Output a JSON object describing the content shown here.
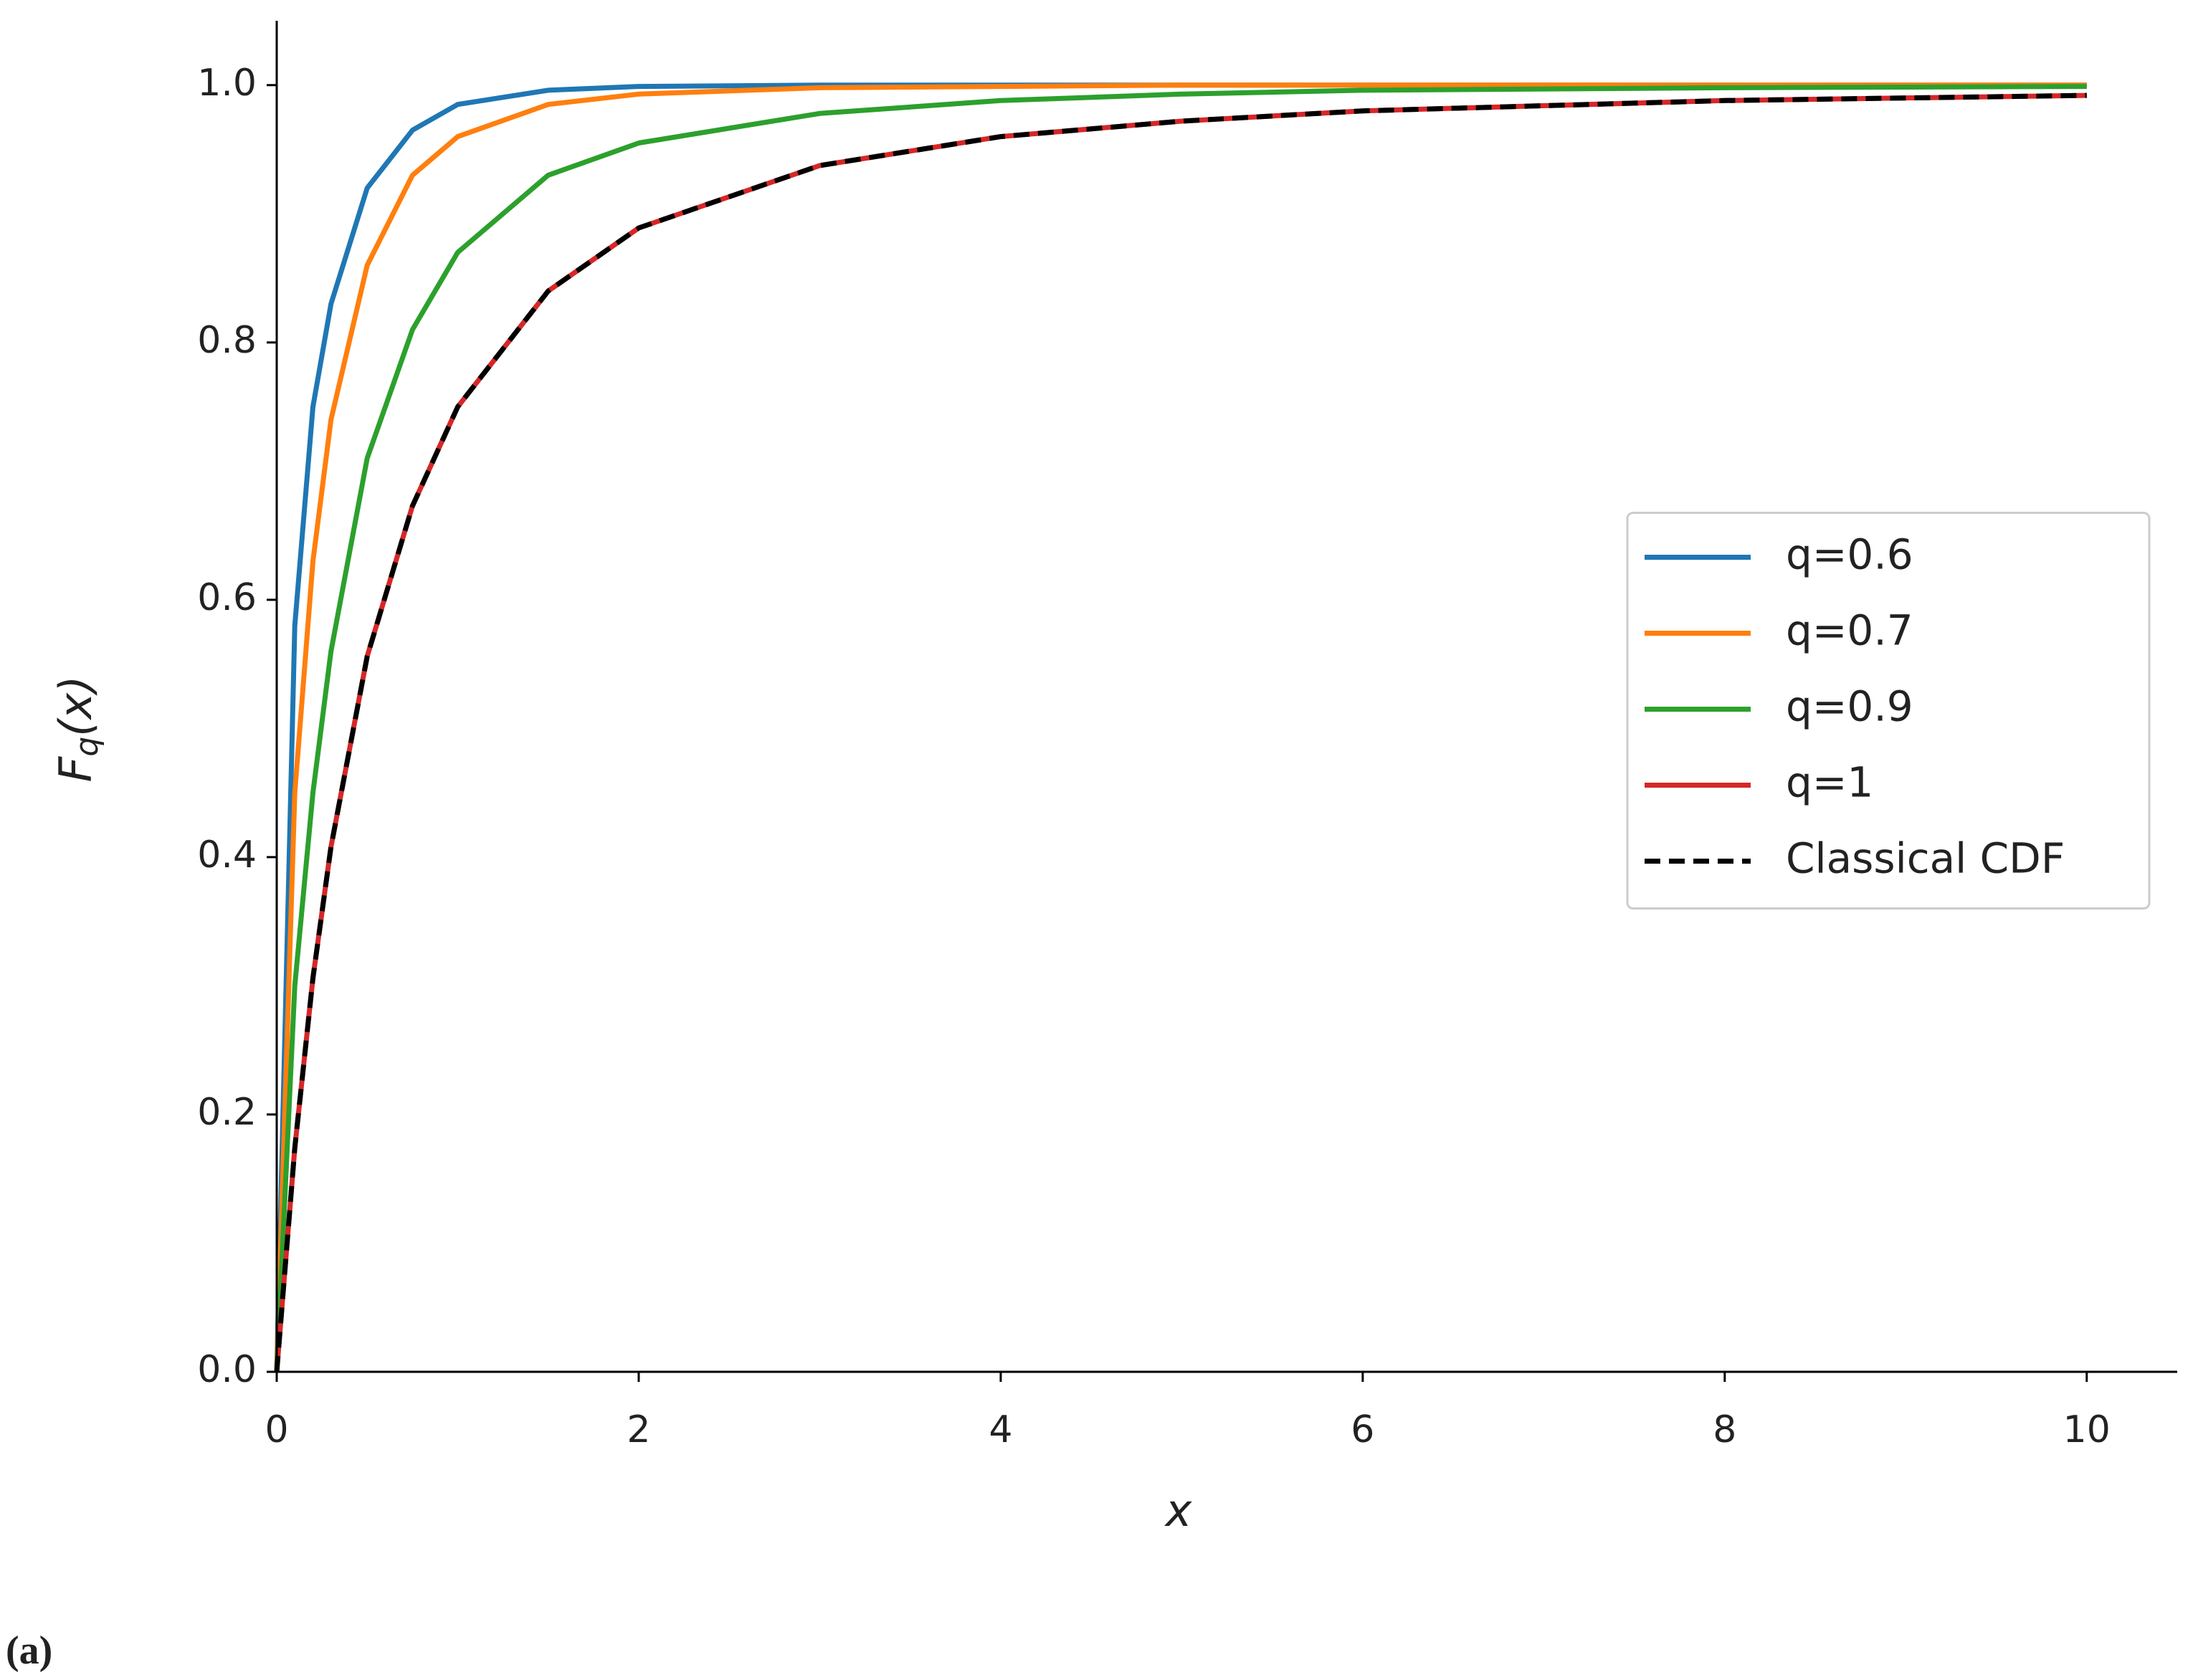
{
  "chart_data": {
    "type": "line",
    "xlabel": "x",
    "ylabel": [
      "F",
      "q",
      "(x)"
    ],
    "panel_label": "(a)",
    "x": [
      0,
      0.1,
      0.2,
      0.3,
      0.5,
      0.75,
      1,
      1.5,
      2,
      3,
      4,
      5,
      6,
      8,
      10
    ],
    "series": [
      {
        "name": "q=0.6",
        "color": "#1f77b4",
        "dash": false,
        "values": [
          0,
          0.58,
          0.75,
          0.83,
          0.92,
          0.965,
          0.985,
          0.996,
          0.999,
          1,
          1,
          1,
          1,
          1,
          1
        ]
      },
      {
        "name": "q=0.7",
        "color": "#ff7f0e",
        "dash": false,
        "values": [
          0,
          0.45,
          0.63,
          0.74,
          0.86,
          0.93,
          0.96,
          0.985,
          0.993,
          0.998,
          0.999,
          1,
          1,
          1,
          1
        ]
      },
      {
        "name": "q=0.9",
        "color": "#2ca02c",
        "dash": false,
        "values": [
          0,
          0.3,
          0.45,
          0.56,
          0.71,
          0.81,
          0.87,
          0.93,
          0.955,
          0.978,
          0.988,
          0.993,
          0.996,
          0.998,
          0.999
        ]
      },
      {
        "name": "q=1",
        "color": "#d62728",
        "dash": false,
        "values": [
          0,
          0.174,
          0.306,
          0.408,
          0.556,
          0.673,
          0.75,
          0.84,
          0.889,
          0.9375,
          0.96,
          0.972,
          0.98,
          0.988,
          0.992
        ]
      },
      {
        "name": "Classical CDF",
        "color": "#000000",
        "dash": true,
        "values": [
          0,
          0.174,
          0.306,
          0.408,
          0.556,
          0.673,
          0.75,
          0.84,
          0.889,
          0.9375,
          0.96,
          0.972,
          0.98,
          0.988,
          0.992
        ]
      }
    ],
    "xlim": [
      0,
      10.5
    ],
    "ylim": [
      0,
      1.05
    ],
    "xticks": [
      0,
      2,
      4,
      6,
      8,
      10
    ],
    "yticks": [
      {
        "value": 0,
        "label": "0.0"
      },
      0.2,
      0.4,
      0.6,
      0.8,
      {
        "value": 1,
        "label": "1.0"
      }
    ],
    "grid": false,
    "legend": "center right"
  }
}
